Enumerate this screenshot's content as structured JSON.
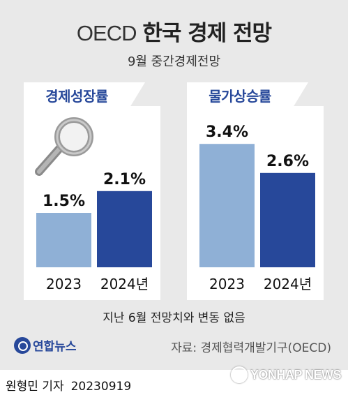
{
  "header": {
    "title_en": "OECD",
    "title_ko": "한국 경제 전망",
    "subtitle": "9월 중간경제전망"
  },
  "note": "지난 6월 전망치와 변동 없음",
  "source": "자료: 경제협력개발기구(OECD)",
  "logo_text": "연합뉴스",
  "byline": {
    "author": "원형민 기자",
    "date": "20230919"
  },
  "watermark": "YONHAP NEWS",
  "colors": {
    "light_bar": "#8fb0d6",
    "dark_bar": "#27489a",
    "tab_text": "#27489a"
  },
  "icons": [
    "magnifier-icon"
  ],
  "chart_data": [
    {
      "type": "bar",
      "title": "경제성장률",
      "categories": [
        "2023",
        "2024년"
      ],
      "values": [
        1.5,
        2.1
      ],
      "value_labels": [
        "1.5%",
        "2.1%"
      ],
      "unit": "%"
    },
    {
      "type": "bar",
      "title": "물가상승률",
      "categories": [
        "2023",
        "2024년"
      ],
      "values": [
        3.4,
        2.6
      ],
      "value_labels": [
        "3.4%",
        "2.6%"
      ],
      "unit": "%"
    }
  ]
}
